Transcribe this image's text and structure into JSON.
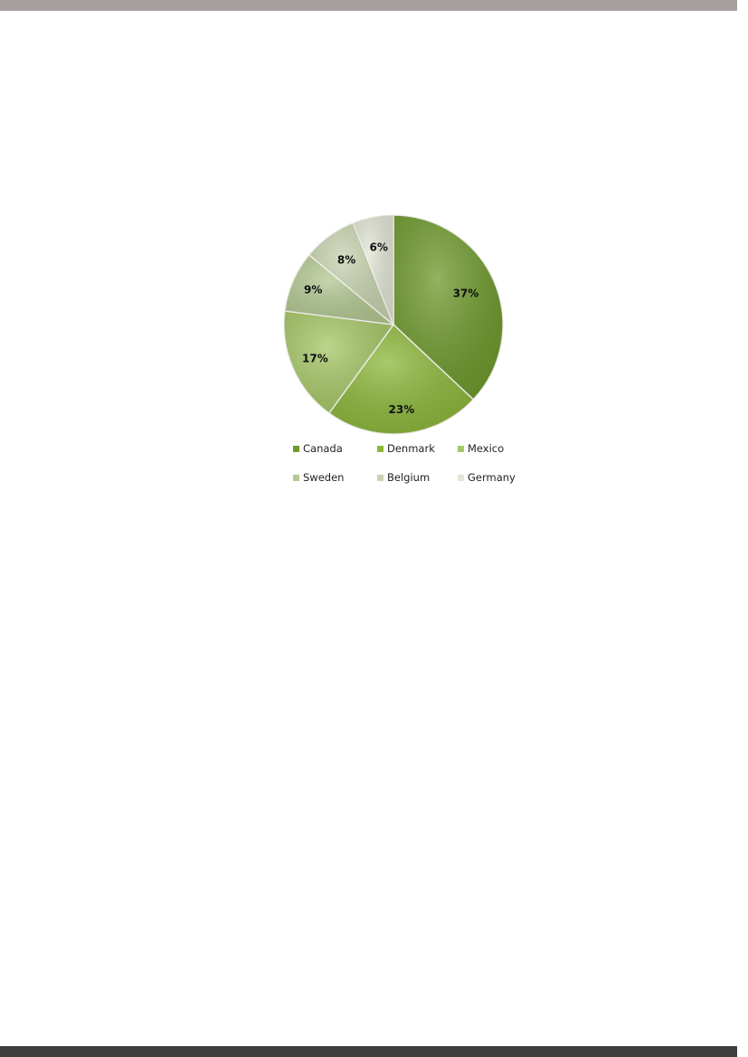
{
  "chart_data": {
    "type": "pie",
    "categories": [
      "Canada",
      "Denmark",
      "Mexico",
      "Sweden",
      "Belgium",
      "Germany"
    ],
    "values": [
      37,
      23,
      17,
      9,
      8,
      6
    ],
    "data_labels": [
      "37%",
      "23%",
      "17%",
      "9%",
      "8%",
      "6%"
    ],
    "colors": [
      "#6e9a2c",
      "#8cb83a",
      "#a6c867",
      "#b4c893",
      "#c8d4b0",
      "#e2e6d6"
    ],
    "start_angle": "top, clockwise",
    "legend": {
      "placement": "bottom"
    }
  },
  "colors": {
    "top_bar": "#a8a09e",
    "bottom_bar": "#3d3d3d"
  }
}
